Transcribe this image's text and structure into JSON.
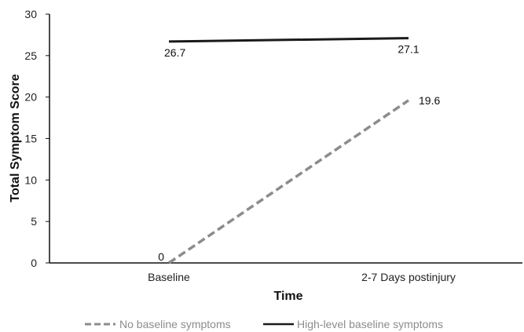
{
  "chart_data": {
    "type": "line",
    "title": "",
    "xlabel": "Time",
    "ylabel": "Total Symptom Score",
    "categories": [
      "Baseline",
      "2-7 Days postinjury"
    ],
    "ylim": [
      0,
      30
    ],
    "yticks": [
      0,
      5,
      10,
      15,
      20,
      25,
      30
    ],
    "grid": false,
    "legend_position": "bottom",
    "series": [
      {
        "name": "No baseline symptoms",
        "values": [
          0,
          19.6
        ],
        "labels": [
          "0",
          "19.6"
        ],
        "color": "#8c8c8c",
        "line_style": "dashed"
      },
      {
        "name": "High-level baseline symptoms",
        "values": [
          26.7,
          27.1
        ],
        "labels": [
          "26.7",
          "27.1"
        ],
        "color": "#1a1a1a",
        "line_style": "solid"
      }
    ]
  }
}
